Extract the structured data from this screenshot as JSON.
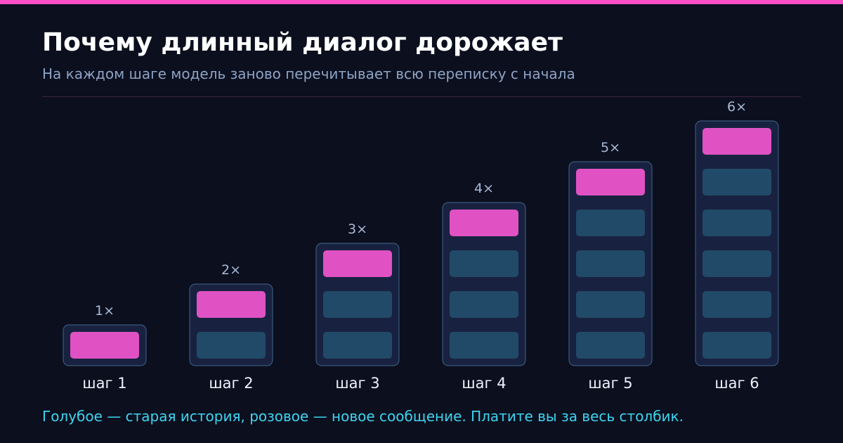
{
  "header": {
    "title": "Почему длинный диалог дорожает",
    "subtitle": "На каждом шаге модель заново перечитывает всю переписку с начала"
  },
  "footer": {
    "note": "Голубое — старая история, розовое — новое сообщение. Платите вы за весь столбик."
  },
  "colors": {
    "accent_bar": "#ff4fc8",
    "new_message": "#e052c4",
    "old_history": "#214a68",
    "column_fill": "#182240",
    "column_border": "#3a5878",
    "multiplier_text": "#a9bad6",
    "step_label_text": "#eef2fa"
  },
  "chart_data": {
    "type": "bar",
    "categories": [
      "шаг 1",
      "шаг 2",
      "шаг 3",
      "шаг 4",
      "шаг 5",
      "шаг 6"
    ],
    "values": [
      1,
      2,
      3,
      4,
      5,
      6
    ],
    "value_labels": [
      "1×",
      "2×",
      "3×",
      "4×",
      "5×",
      "6×"
    ],
    "segments": [
      {
        "new": 1,
        "old": 0
      },
      {
        "new": 1,
        "old": 1
      },
      {
        "new": 1,
        "old": 2
      },
      {
        "new": 1,
        "old": 3
      },
      {
        "new": 1,
        "old": 4
      },
      {
        "new": 1,
        "old": 5
      }
    ]
  }
}
